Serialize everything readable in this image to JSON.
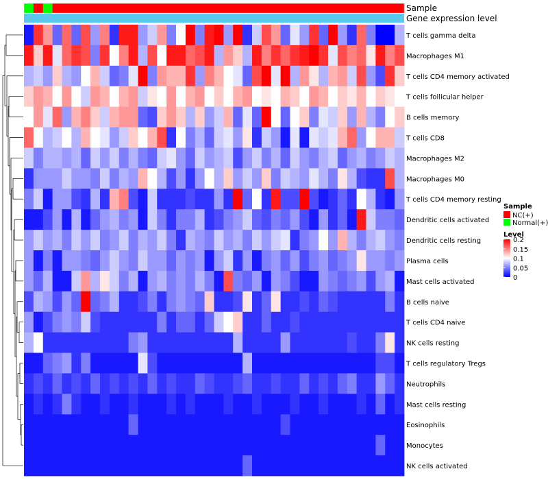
{
  "chart_data": {
    "type": "heatmap",
    "annotation_labels": [
      "Sample",
      "Gene expression level"
    ],
    "sample_colors": {
      "NC(+)": "#ff0000",
      "Normal(+)": "#00ff00"
    },
    "gene_expression_bar_color": "#5bc8f0",
    "sample_groups": [
      "Normal(+)",
      "NC(+)",
      "Normal(+)",
      "NC(+)",
      "NC(+)",
      "NC(+)",
      "NC(+)",
      "NC(+)",
      "NC(+)",
      "NC(+)",
      "NC(+)",
      "NC(+)",
      "NC(+)",
      "NC(+)",
      "NC(+)",
      "NC(+)",
      "NC(+)",
      "NC(+)",
      "NC(+)",
      "NC(+)",
      "NC(+)",
      "NC(+)",
      "NC(+)",
      "NC(+)",
      "NC(+)",
      "NC(+)",
      "NC(+)",
      "NC(+)",
      "NC(+)",
      "NC(+)",
      "NC(+)",
      "NC(+)",
      "NC(+)",
      "NC(+)",
      "NC(+)",
      "NC(+)",
      "NC(+)",
      "NC(+)",
      "NC(+)",
      "NC(+)"
    ],
    "rows": [
      "T cells gamma delta",
      "Macrophages M1",
      "T cells CD4 memory activated",
      "T cells follicular helper",
      "B cells memory",
      "T cells CD8",
      "Macrophages M2",
      "Macrophages M0",
      "T cells CD4 memory resting",
      "Dendritic cells activated",
      "Dendritic cells resting",
      "Plasma cells",
      "Mast cells activated",
      "B cells naive",
      "T cells CD4 naive",
      "NK cells resting",
      "T cells regulatory  Tregs",
      "Neutrophils",
      "Mast cells resting",
      "Eosinophils",
      "Monocytes",
      "NK cells activated"
    ],
    "values": [
      [
        0.01,
        0.18,
        0.14,
        0.04,
        0.16,
        0.04,
        0.17,
        0.06,
        0.15,
        0.02,
        0.19,
        0.19,
        0.06,
        0.08,
        0.14,
        0.05,
        0.1,
        0.2,
        0.05,
        0.19,
        0.2,
        0.06,
        0.2,
        0.02,
        0.08,
        0.17,
        0.14,
        0.04,
        0.09,
        0.06,
        0.18,
        0.04,
        0.2,
        0.06,
        0.02,
        0.16,
        0.05,
        0.0,
        0.0,
        0.07
      ],
      [
        0.19,
        0.12,
        0.19,
        0.09,
        0.16,
        0.18,
        0.17,
        0.05,
        0.18,
        0.1,
        0.15,
        0.19,
        0.07,
        0.17,
        0.1,
        0.19,
        0.19,
        0.16,
        0.17,
        0.19,
        0.07,
        0.14,
        0.12,
        0.07,
        0.19,
        0.15,
        0.18,
        0.16,
        0.18,
        0.19,
        0.2,
        0.18,
        0.09,
        0.17,
        0.15,
        0.16,
        0.11,
        0.19,
        0.15,
        0.17
      ],
      [
        0.07,
        0.08,
        0.06,
        0.12,
        0.07,
        0.06,
        0.1,
        0.13,
        0.08,
        0.04,
        0.05,
        0.09,
        0.2,
        0.05,
        0.14,
        0.13,
        0.13,
        0.18,
        0.06,
        0.15,
        0.13,
        0.1,
        0.09,
        0.04,
        0.17,
        0.2,
        0.09,
        0.2,
        0.07,
        0.14,
        0.11,
        0.07,
        0.13,
        0.14,
        0.08,
        0.17,
        0.06,
        0.03,
        0.18,
        0.12
      ],
      [
        0.12,
        0.14,
        0.13,
        0.1,
        0.14,
        0.1,
        0.08,
        0.14,
        0.13,
        0.1,
        0.13,
        0.14,
        0.08,
        0.11,
        0.1,
        0.14,
        0.1,
        0.13,
        0.14,
        0.1,
        0.12,
        0.1,
        0.13,
        0.14,
        0.1,
        0.11,
        0.1,
        0.13,
        0.12,
        0.1,
        0.14,
        0.13,
        0.1,
        0.12,
        0.11,
        0.13,
        0.1,
        0.12,
        0.11,
        0.1
      ],
      [
        0.1,
        0.14,
        0.09,
        0.16,
        0.06,
        0.13,
        0.15,
        0.12,
        0.08,
        0.13,
        0.14,
        0.14,
        0.04,
        0.03,
        0.12,
        0.14,
        0.12,
        0.07,
        0.12,
        0.06,
        0.08,
        0.13,
        0.04,
        0.09,
        0.04,
        0.21,
        0.1,
        0.04,
        0.1,
        0.12,
        0.05,
        0.09,
        0.08,
        0.12,
        0.06,
        0.13,
        0.07,
        0.05,
        0.1,
        0.12
      ],
      [
        0.16,
        0.1,
        0.07,
        0.08,
        0.1,
        0.07,
        0.13,
        0.1,
        0.09,
        0.06,
        0.08,
        0.12,
        0.1,
        0.13,
        0.17,
        0.02,
        0.1,
        0.05,
        0.07,
        0.04,
        0.08,
        0.09,
        0.06,
        0.11,
        0.02,
        0.08,
        0.06,
        0.01,
        0.09,
        0.01,
        0.09,
        0.08,
        0.09,
        0.13,
        0.16,
        0.06,
        0.1,
        0.13,
        0.13,
        0.08
      ],
      [
        0.08,
        0.05,
        0.07,
        0.07,
        0.06,
        0.07,
        0.04,
        0.08,
        0.06,
        0.08,
        0.05,
        0.07,
        0.05,
        0.04,
        0.08,
        0.09,
        0.06,
        0.04,
        0.08,
        0.06,
        0.07,
        0.08,
        0.03,
        0.06,
        0.08,
        0.05,
        0.07,
        0.04,
        0.08,
        0.06,
        0.05,
        0.07,
        0.08,
        0.04,
        0.06,
        0.07,
        0.05,
        0.06,
        0.08,
        0.07
      ],
      [
        0.02,
        0.06,
        0.06,
        0.06,
        0.08,
        0.06,
        0.06,
        0.05,
        0.08,
        0.05,
        0.07,
        0.06,
        0.13,
        0.1,
        0.07,
        0.03,
        0.06,
        0.02,
        0.06,
        0.1,
        0.07,
        0.12,
        0.06,
        0.08,
        0.06,
        0.12,
        0.05,
        0.08,
        0.07,
        0.06,
        0.09,
        0.07,
        0.05,
        0.11,
        0.07,
        0.03,
        0.02,
        0.02,
        0.17,
        0.07
      ],
      [
        0.05,
        0.08,
        0.01,
        0.06,
        0.06,
        0.03,
        0.02,
        0.07,
        0.02,
        0.13,
        0.15,
        0.03,
        0.01,
        0.08,
        0.02,
        0.02,
        0.02,
        0.03,
        0.02,
        0.02,
        0.06,
        0.02,
        0.2,
        0.04,
        0.1,
        0.02,
        0.19,
        0.03,
        0.03,
        0.2,
        0.03,
        0.01,
        0.02,
        0.04,
        0.02,
        0.1,
        0.07,
        0.02,
        0.01,
        0.06
      ],
      [
        0.01,
        0.01,
        0.03,
        0.06,
        0.01,
        0.07,
        0.01,
        0.04,
        0.06,
        0.07,
        0.05,
        0.06,
        0.01,
        0.08,
        0.05,
        0.02,
        0.05,
        0.05,
        0.07,
        0.02,
        0.03,
        0.05,
        0.06,
        0.08,
        0.04,
        0.03,
        0.05,
        0.04,
        0.06,
        0.03,
        0.01,
        0.06,
        0.02,
        0.04,
        0.01,
        0.19,
        0.08,
        0.05,
        0.05,
        0.04
      ],
      [
        0.06,
        0.08,
        0.06,
        0.07,
        0.05,
        0.08,
        0.06,
        0.08,
        0.05,
        0.06,
        0.08,
        0.05,
        0.07,
        0.06,
        0.08,
        0.05,
        0.02,
        0.07,
        0.06,
        0.05,
        0.08,
        0.06,
        0.07,
        0.05,
        0.08,
        0.06,
        0.08,
        0.09,
        0.02,
        0.05,
        0.06,
        0.1,
        0.06,
        0.13,
        0.07,
        0.05,
        0.07,
        0.08,
        0.06,
        0.05
      ],
      [
        0.06,
        0.01,
        0.05,
        0.01,
        0.06,
        0.06,
        0.05,
        0.04,
        0.06,
        0.08,
        0.06,
        0.05,
        0.08,
        0.06,
        0.06,
        0.04,
        0.06,
        0.05,
        0.06,
        0.01,
        0.06,
        0.08,
        0.02,
        0.06,
        0.01,
        0.05,
        0.06,
        0.04,
        0.06,
        0.03,
        0.05,
        0.06,
        0.04,
        0.05,
        0.06,
        0.11,
        0.06,
        0.06,
        0.05,
        0.06
      ],
      [
        0.06,
        0.04,
        0.07,
        0.01,
        0.01,
        0.08,
        0.14,
        0.07,
        0.11,
        0.08,
        0.05,
        0.07,
        0.01,
        0.06,
        0.07,
        0.05,
        0.06,
        0.05,
        0.07,
        0.05,
        0.01,
        0.17,
        0.05,
        0.04,
        0.06,
        0.01,
        0.06,
        0.05,
        0.03,
        0.01,
        0.01,
        0.06,
        0.05,
        0.04,
        0.05,
        0.06,
        0.03,
        0.06,
        0.07,
        0.01
      ],
      [
        0.03,
        0.07,
        0.06,
        0.03,
        0.06,
        0.04,
        0.23,
        0.04,
        0.05,
        0.07,
        0.02,
        0.02,
        0.03,
        0.05,
        0.02,
        0.05,
        0.06,
        0.05,
        0.04,
        0.12,
        0.02,
        0.02,
        0.03,
        0.11,
        0.02,
        0.04,
        0.11,
        0.02,
        0.02,
        0.03,
        0.02,
        0.04,
        0.03,
        0.02,
        0.02,
        0.02,
        0.02,
        0.02,
        0.05,
        0.02
      ],
      [
        0.06,
        0.01,
        0.03,
        0.05,
        0.06,
        0.05,
        0.08,
        0.03,
        0.02,
        0.02,
        0.02,
        0.02,
        0.02,
        0.02,
        0.05,
        0.02,
        0.04,
        0.04,
        0.02,
        0.04,
        0.08,
        0.1,
        0.12,
        0.02,
        0.02,
        0.04,
        0.02,
        0.02,
        0.03,
        0.02,
        0.02,
        0.02,
        0.02,
        0.02,
        0.02,
        0.02,
        0.02,
        0.02,
        0.02,
        0.02
      ],
      [
        0.07,
        0.1,
        0.02,
        0.02,
        0.02,
        0.02,
        0.02,
        0.02,
        0.02,
        0.02,
        0.02,
        0.05,
        0.06,
        0.02,
        0.02,
        0.02,
        0.02,
        0.02,
        0.02,
        0.02,
        0.02,
        0.02,
        0.07,
        0.02,
        0.02,
        0.02,
        0.02,
        0.06,
        0.02,
        0.02,
        0.02,
        0.02,
        0.02,
        0.02,
        0.03,
        0.02,
        0.02,
        0.05,
        0.11,
        0.02
      ],
      [
        0.01,
        0.01,
        0.04,
        0.05,
        0.06,
        0.02,
        0.05,
        0.01,
        0.01,
        0.01,
        0.01,
        0.01,
        0.09,
        0.03,
        0.01,
        0.01,
        0.01,
        0.01,
        0.01,
        0.01,
        0.01,
        0.01,
        0.01,
        0.07,
        0.01,
        0.01,
        0.01,
        0.01,
        0.01,
        0.01,
        0.01,
        0.01,
        0.01,
        0.01,
        0.01,
        0.01,
        0.01,
        0.03,
        0.03,
        0.01
      ],
      [
        0.02,
        0.03,
        0.02,
        0.04,
        0.02,
        0.03,
        0.02,
        0.04,
        0.02,
        0.03,
        0.02,
        0.03,
        0.02,
        0.04,
        0.02,
        0.03,
        0.02,
        0.02,
        0.04,
        0.03,
        0.02,
        0.02,
        0.03,
        0.04,
        0.02,
        0.02,
        0.03,
        0.02,
        0.02,
        0.04,
        0.02,
        0.03,
        0.02,
        0.04,
        0.05,
        0.02,
        0.02,
        0.06,
        0.04,
        0.02
      ],
      [
        0.01,
        0.02,
        0.01,
        0.02,
        0.05,
        0.02,
        0.01,
        0.01,
        0.02,
        0.01,
        0.01,
        0.02,
        0.01,
        0.01,
        0.01,
        0.02,
        0.01,
        0.02,
        0.01,
        0.01,
        0.01,
        0.02,
        0.01,
        0.01,
        0.02,
        0.01,
        0.01,
        0.01,
        0.02,
        0.01,
        0.01,
        0.02,
        0.01,
        0.01,
        0.01,
        0.02,
        0.01,
        0.04,
        0.01,
        0.02
      ],
      [
        0.01,
        0.01,
        0.01,
        0.01,
        0.01,
        0.01,
        0.01,
        0.01,
        0.01,
        0.01,
        0.01,
        0.04,
        0.01,
        0.01,
        0.01,
        0.01,
        0.01,
        0.01,
        0.01,
        0.01,
        0.01,
        0.01,
        0.01,
        0.01,
        0.01,
        0.01,
        0.01,
        0.03,
        0.01,
        0.01,
        0.01,
        0.01,
        0.01,
        0.01,
        0.01,
        0.01,
        0.01,
        0.01,
        0.01,
        0.01
      ],
      [
        0.01,
        0.01,
        0.01,
        0.01,
        0.01,
        0.01,
        0.01,
        0.01,
        0.01,
        0.01,
        0.01,
        0.01,
        0.01,
        0.01,
        0.01,
        0.01,
        0.01,
        0.01,
        0.01,
        0.01,
        0.01,
        0.01,
        0.01,
        0.01,
        0.01,
        0.01,
        0.01,
        0.01,
        0.01,
        0.01,
        0.01,
        0.01,
        0.01,
        0.01,
        0.01,
        0.01,
        0.01,
        0.04,
        0.01,
        0.01
      ],
      [
        0.01,
        0.01,
        0.01,
        0.01,
        0.01,
        0.01,
        0.01,
        0.01,
        0.01,
        0.01,
        0.01,
        0.01,
        0.01,
        0.01,
        0.01,
        0.01,
        0.01,
        0.01,
        0.01,
        0.01,
        0.01,
        0.01,
        0.01,
        0.04,
        0.01,
        0.01,
        0.01,
        0.01,
        0.01,
        0.01,
        0.01,
        0.01,
        0.01,
        0.01,
        0.01,
        0.01,
        0.01,
        0.01,
        0.01,
        0.01
      ]
    ],
    "color_scale": {
      "low": "#0000ff",
      "mid": "#ffffff",
      "high": "#ff0000",
      "min": 0,
      "mid_value": 0.1,
      "max": 0.2
    },
    "legend": {
      "sample_title": "Sample",
      "sample_entries": [
        {
          "label": "NC(+)",
          "color": "#ff0000"
        },
        {
          "label": "Normal(+)",
          "color": "#00ff00"
        }
      ],
      "level_title": "Level",
      "level_ticks": [
        "0.2",
        "0.15",
        "0.1",
        "0.05",
        "0"
      ],
      "level_tick_values": [
        0.2,
        0.15,
        0.1,
        0.05,
        0
      ]
    },
    "row_dendrogram": true
  }
}
